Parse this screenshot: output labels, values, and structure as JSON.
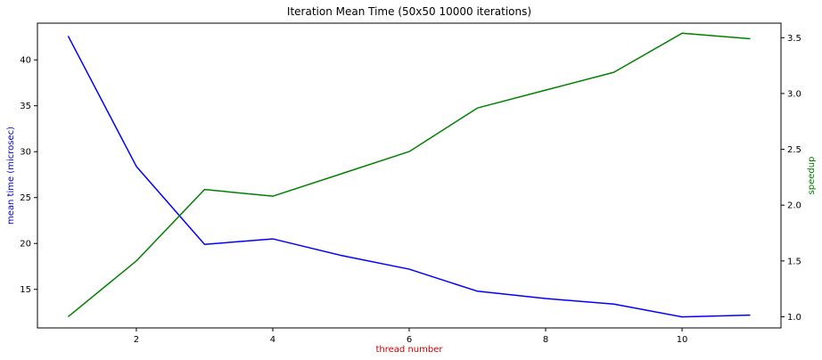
{
  "chart_data": {
    "type": "line",
    "title": "Iteration Mean Time (50x50 10000 iterations)",
    "xlabel": "thread number",
    "ylabel": "mean time (microsec)",
    "ylabel_right": "speedup",
    "xlim": [
      0.55,
      11.45
    ],
    "ylim": [
      10.8,
      44.0
    ],
    "ylim_right": [
      0.9,
      3.63
    ],
    "x_ticks": [
      2,
      4,
      6,
      8,
      10
    ],
    "y_ticks": [
      15,
      20,
      25,
      30,
      35,
      40
    ],
    "y_ticks_right": [
      1.0,
      1.5,
      2.0,
      2.5,
      3.0,
      3.5
    ],
    "grid": false,
    "colors": {
      "xlabel": "#cc0000",
      "ylabel": "#0000cc",
      "ylabel_right": "#007700"
    },
    "series": [
      {
        "axis": "left",
        "color": "#0000ff",
        "x": [
          1,
          2,
          3,
          4,
          5,
          6,
          7,
          8,
          9,
          10,
          11
        ],
        "values": [
          42.6,
          28.4,
          19.9,
          20.5,
          18.7,
          17.2,
          14.8,
          14.0,
          13.4,
          12.0,
          12.2
        ]
      },
      {
        "axis": "right",
        "color": "#008000",
        "x": [
          1,
          2,
          3,
          4,
          5,
          6,
          7,
          8,
          9,
          10,
          11
        ],
        "values": [
          1.0,
          1.5,
          2.14,
          2.08,
          2.28,
          2.48,
          2.87,
          3.03,
          3.19,
          3.54,
          3.49
        ]
      }
    ]
  }
}
